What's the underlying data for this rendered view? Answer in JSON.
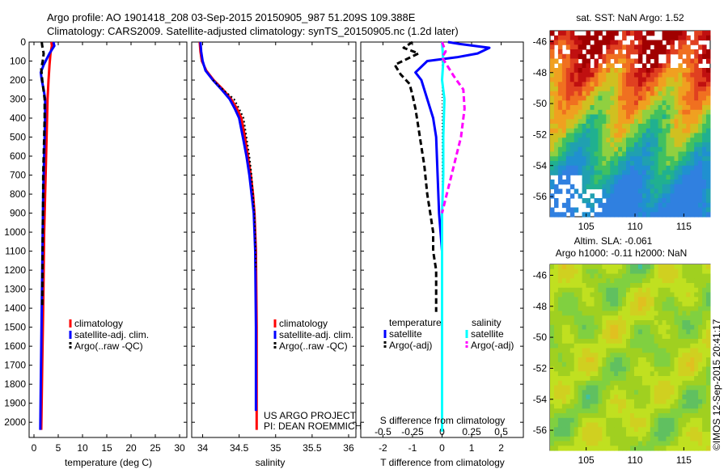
{
  "header": {
    "line1": "Argo profile: AO 1901418_208 03-Sep-2015 20150905_987 51.209S 109.388E",
    "line2": "Climatology: CARS2009. Satellite-adjusted climatology: synTS_20150905.nc (1.2d later)"
  },
  "colors": {
    "climatology": "#ff0000",
    "satellite": "#0000ff",
    "argo": "#000000",
    "salinity_satellite": "#00ffff",
    "salinity_argo": "#ff00ff"
  },
  "depth_axis": {
    "ylim": [
      2080,
      0
    ],
    "ticks": [
      0,
      100,
      200,
      300,
      400,
      500,
      600,
      700,
      800,
      900,
      1000,
      1100,
      1200,
      1300,
      1400,
      1500,
      1600,
      1700,
      1800,
      1900,
      2000
    ]
  },
  "chart_data": [
    {
      "id": "temperature",
      "type": "line",
      "xlabel": "temperature (deg C)",
      "xlim": [
        -1,
        31.5
      ],
      "xticks": [
        0,
        5,
        10,
        15,
        20,
        25,
        30
      ],
      "legend": {
        "position": "lower-center",
        "entries": [
          "climatology",
          "satellite-adj. clim.",
          "Argo(..raw -QC)"
        ]
      },
      "series": [
        {
          "name": "climatology",
          "style": "solid",
          "color": "#ff0000",
          "x": [
            3.6,
            3.7,
            3.4,
            3.2,
            3.0,
            2.8,
            2.7,
            2.6,
            2.5,
            2.4,
            2.3,
            2.2,
            2.1,
            2.0,
            1.9,
            1.7,
            1.5
          ],
          "y": [
            0,
            20,
            60,
            120,
            200,
            300,
            400,
            500,
            600,
            700,
            800,
            900,
            1000,
            1200,
            1400,
            1700,
            2040
          ]
        },
        {
          "name": "satellite-adj. clim.",
          "style": "solid",
          "color": "#0000ff",
          "x": [
            4.0,
            4.2,
            3.2,
            2.0,
            1.4,
            1.6,
            2.0,
            2.3,
            2.3,
            2.2,
            2.1,
            2.0,
            1.9,
            1.8,
            1.7,
            1.6,
            1.5,
            1.4,
            1.3
          ],
          "y": [
            0,
            20,
            60,
            120,
            160,
            200,
            250,
            300,
            400,
            500,
            600,
            700,
            800,
            1000,
            1200,
            1400,
            1600,
            1800,
            2040
          ]
        },
        {
          "name": "Argo(..raw -QC)",
          "style": "dashed",
          "color": "#000000",
          "x": [
            1.6,
            1.7,
            2.0,
            1.8,
            1.5,
            1.7,
            2.0,
            2.2,
            2.2,
            2.1,
            2.0,
            1.9,
            1.9,
            1.8,
            1.7
          ],
          "y": [
            0,
            20,
            60,
            100,
            140,
            200,
            260,
            300,
            400,
            500,
            600,
            700,
            800,
            1000,
            1400
          ]
        }
      ]
    },
    {
      "id": "salinity",
      "type": "line",
      "xlabel": "salinity",
      "xlim": [
        33.85,
        36.1
      ],
      "xticks": [
        34,
        34.5,
        35,
        35.5,
        36
      ],
      "legend": {
        "position": "lower-center",
        "entries": [
          "climatology",
          "satellite-adj. clim.",
          "Argo(..raw -QC)"
        ]
      },
      "annotation": [
        "US ARGO PROJECT",
        "PI: DEAN ROEMMICH"
      ],
      "series": [
        {
          "name": "climatology",
          "style": "solid",
          "color": "#ff0000",
          "x": [
            33.96,
            33.97,
            33.99,
            34.05,
            34.15,
            34.28,
            34.39,
            34.47,
            34.53,
            34.58,
            34.62,
            34.66,
            34.69,
            34.71,
            34.73,
            34.74,
            34.74
          ],
          "y": [
            0,
            50,
            100,
            150,
            200,
            250,
            300,
            350,
            400,
            500,
            600,
            700,
            800,
            900,
            1100,
            1500,
            2040
          ]
        },
        {
          "name": "satellite-adj. clim.",
          "style": "solid",
          "color": "#0000ff",
          "x": [
            33.97,
            33.98,
            34.0,
            34.04,
            34.14,
            34.26,
            34.37,
            34.44,
            34.5,
            34.55,
            34.6,
            34.64,
            34.67,
            34.7,
            34.72,
            34.73,
            34.73
          ],
          "y": [
            0,
            50,
            100,
            150,
            200,
            250,
            300,
            350,
            400,
            500,
            600,
            700,
            800,
            900,
            1100,
            1500,
            1940
          ]
        },
        {
          "name": "Argo(..raw -QC)",
          "style": "dotted",
          "color": "#000000",
          "x": [
            34.14,
            34.22,
            34.34,
            34.43,
            34.5,
            34.56,
            34.6,
            34.64,
            34.67,
            34.69,
            34.71,
            34.72,
            34.73
          ],
          "y": [
            200,
            230,
            270,
            300,
            350,
            400,
            500,
            600,
            700,
            800,
            900,
            1000,
            1200
          ]
        }
      ]
    },
    {
      "id": "difference",
      "type": "line",
      "xlabel": "T difference from climatology",
      "xlabel_top": "S difference from climatology",
      "xlim": [
        -2.75,
        2.75
      ],
      "xticks": [
        -2,
        -1,
        0,
        1,
        2
      ],
      "xticks_top": [
        -0.5,
        -0.25,
        0,
        0.25,
        0.5
      ],
      "legend": {
        "position": "lower-center",
        "temperature_title": "temperature",
        "salinity_title": "salinity",
        "entries": [
          "satellite",
          "Argo(-adj)",
          "satellite",
          "Argo(-adj)"
        ]
      },
      "series": [
        {
          "name": "satellite",
          "style": "solid",
          "color": "#0000ff",
          "x": [
            0.2,
            0.6,
            1.6,
            1.2,
            0.5,
            -0.5,
            -0.9,
            -0.7,
            -0.5,
            -0.3,
            -0.2,
            -0.15,
            -0.1,
            0.0,
            0.0
          ],
          "y": [
            0,
            10,
            30,
            60,
            80,
            100,
            160,
            200,
            300,
            400,
            500,
            700,
            900,
            1100,
            1500
          ]
        },
        {
          "name": "Argo(-adj)",
          "style": "dashed",
          "color": "#000000",
          "x": [
            -1.0,
            -1.3,
            -0.8,
            -1.2,
            -1.6,
            -1.4,
            -1.1,
            -1.0,
            -0.9,
            -0.8,
            -0.7,
            -0.6,
            -0.5,
            -0.4,
            -0.3,
            -0.3,
            -0.2,
            -0.2,
            -0.2
          ],
          "y": [
            0,
            30,
            60,
            90,
            120,
            170,
            220,
            280,
            350,
            450,
            550,
            650,
            800,
            900,
            1000,
            1100,
            1200,
            1300,
            1420
          ]
        },
        {
          "name": "satellite",
          "style": "solid",
          "color": "#00ffff",
          "x": [
            0.0,
            0.01,
            0.0,
            0.02,
            0.01,
            0.01,
            0.0,
            0.0,
            0.0,
            0.0
          ],
          "y": [
            0,
            100,
            200,
            300,
            500,
            700,
            900,
            1300,
            1700,
            2050
          ]
        },
        {
          "name": "Argo(-adj)",
          "style": "dashed",
          "color": "#ff00ff",
          "x": [
            0.0,
            0.03,
            0.0,
            0.02,
            0.1,
            0.18,
            0.19,
            0.16,
            0.12,
            0.08,
            0.04,
            0.0
          ],
          "y": [
            0,
            50,
            80,
            100,
            180,
            250,
            350,
            500,
            600,
            700,
            800,
            900
          ]
        }
      ]
    }
  ],
  "maps": {
    "sst": {
      "title": "sat. SST: NaN Argo: 1.52",
      "yticks": [
        -46,
        -48,
        -50,
        -52,
        -54,
        -56
      ],
      "xticks": [
        105,
        110,
        115
      ]
    },
    "sla": {
      "title_line1": "Altim. SLA: -0.061",
      "title_line2": "Argo h1000: -0.11 h2000: NaN",
      "yticks": [
        -46,
        -48,
        -50,
        -52,
        -54,
        -56
      ],
      "xticks": [
        105,
        110,
        115
      ]
    }
  },
  "watermark": "©IMOS 12-Sep-2015 20:41:17"
}
